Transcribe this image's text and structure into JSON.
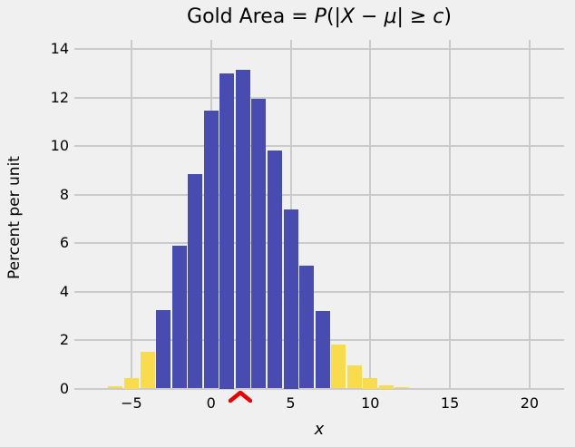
{
  "figure": {
    "background": "#f0f0f0",
    "grid_color": "#cbcbcb",
    "text_color": "#000000"
  },
  "chart_data": {
    "type": "bar",
    "subtype": "histogram",
    "title": "Gold Area = P(|X − μ| ≥ c)",
    "title_parts": [
      {
        "t": "Gold Area = ",
        "i": false
      },
      {
        "t": "P",
        "i": true
      },
      {
        "t": "(|",
        "i": false
      },
      {
        "t": "X",
        "i": true
      },
      {
        "t": " − ",
        "i": false
      },
      {
        "t": "μ",
        "i": true
      },
      {
        "t": "| ≥ ",
        "i": false
      },
      {
        "t": "c",
        "i": true
      },
      {
        "t": ")",
        "i": false
      }
    ],
    "xlabel": "x",
    "ylabel": "Percent per unit",
    "xlim": [
      -8.6,
      22.2
    ],
    "ylim": [
      0,
      14.35
    ],
    "grid": true,
    "legend_position": "none",
    "xticks": {
      "values": [
        -5,
        0,
        5,
        10,
        15,
        20
      ],
      "labels": [
        "−5",
        "0",
        "5",
        "10",
        "15",
        "20"
      ]
    },
    "yticks": {
      "values": [
        0,
        2,
        4,
        6,
        8,
        10,
        12,
        14
      ],
      "labels": [
        "0",
        "2",
        "4",
        "6",
        "8",
        "10",
        "12",
        "14"
      ]
    },
    "bin_width": 1,
    "colors": {
      "blue": "#484bb0",
      "gold": "#f8dc4b"
    },
    "bars": [
      {
        "center": -6,
        "height": 0.1,
        "color": "gold"
      },
      {
        "center": -5,
        "height": 0.45,
        "color": "gold"
      },
      {
        "center": -4,
        "height": 1.5,
        "color": "gold"
      },
      {
        "center": -3,
        "height": 3.25,
        "color": "blue"
      },
      {
        "center": -2,
        "height": 5.9,
        "color": "blue"
      },
      {
        "center": -1,
        "height": 8.85,
        "color": "blue"
      },
      {
        "center": 0,
        "height": 11.45,
        "color": "blue"
      },
      {
        "center": 1,
        "height": 13.0,
        "color": "blue"
      },
      {
        "center": 2,
        "height": 13.15,
        "color": "blue"
      },
      {
        "center": 3,
        "height": 11.95,
        "color": "blue"
      },
      {
        "center": 4,
        "height": 9.8,
        "color": "blue"
      },
      {
        "center": 5,
        "height": 7.4,
        "color": "blue"
      },
      {
        "center": 6,
        "height": 5.05,
        "color": "blue"
      },
      {
        "center": 7,
        "height": 3.2,
        "color": "blue"
      },
      {
        "center": 8,
        "height": 1.8,
        "color": "gold"
      },
      {
        "center": 9,
        "height": 0.95,
        "color": "gold"
      },
      {
        "center": 10,
        "height": 0.45,
        "color": "gold"
      },
      {
        "center": 11,
        "height": 0.13,
        "color": "gold"
      },
      {
        "center": 12,
        "height": 0.05,
        "color": "gold"
      }
    ],
    "marker": {
      "type": "caret-up",
      "x": 1.85,
      "color": "#e60000"
    }
  }
}
